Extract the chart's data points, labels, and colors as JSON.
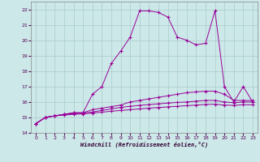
{
  "xlabel": "Windchill (Refroidissement éolien,°C)",
  "bg_color": "#cce8e8",
  "grid_color": "#aacccc",
  "line_color": "#990099",
  "x_data": [
    0,
    1,
    2,
    3,
    4,
    5,
    6,
    7,
    8,
    9,
    10,
    11,
    12,
    13,
    14,
    15,
    16,
    17,
    18,
    19,
    20,
    21,
    22,
    23
  ],
  "curve1": [
    14.6,
    15.0,
    15.1,
    15.2,
    15.3,
    15.3,
    16.5,
    17.0,
    18.5,
    19.3,
    20.2,
    21.9,
    21.9,
    21.8,
    21.5,
    20.2,
    20.0,
    19.7,
    19.8,
    21.9,
    17.0,
    16.0,
    17.0,
    16.0
  ],
  "curve2": [
    14.6,
    15.0,
    15.1,
    15.2,
    15.3,
    15.3,
    15.5,
    15.6,
    15.7,
    15.8,
    16.0,
    16.1,
    16.2,
    16.3,
    16.4,
    16.5,
    16.6,
    16.65,
    16.7,
    16.7,
    16.5,
    16.1,
    16.1,
    16.1
  ],
  "curve3": [
    14.6,
    15.0,
    15.1,
    15.2,
    15.25,
    15.28,
    15.35,
    15.45,
    15.55,
    15.65,
    15.72,
    15.78,
    15.83,
    15.88,
    15.93,
    15.97,
    16.0,
    16.05,
    16.1,
    16.1,
    16.0,
    15.95,
    16.0,
    16.0
  ],
  "curve4": [
    14.6,
    15.0,
    15.1,
    15.15,
    15.2,
    15.23,
    15.28,
    15.34,
    15.4,
    15.45,
    15.5,
    15.55,
    15.6,
    15.64,
    15.68,
    15.72,
    15.76,
    15.8,
    15.84,
    15.85,
    15.8,
    15.78,
    15.82,
    15.82
  ],
  "ylim": [
    14,
    22.5
  ],
  "xlim": [
    -0.5,
    23.5
  ],
  "yticks": [
    14,
    15,
    16,
    17,
    18,
    19,
    20,
    21,
    22
  ],
  "xticks": [
    0,
    1,
    2,
    3,
    4,
    5,
    6,
    7,
    8,
    9,
    10,
    11,
    12,
    13,
    14,
    15,
    16,
    17,
    18,
    19,
    20,
    21,
    22,
    23
  ]
}
